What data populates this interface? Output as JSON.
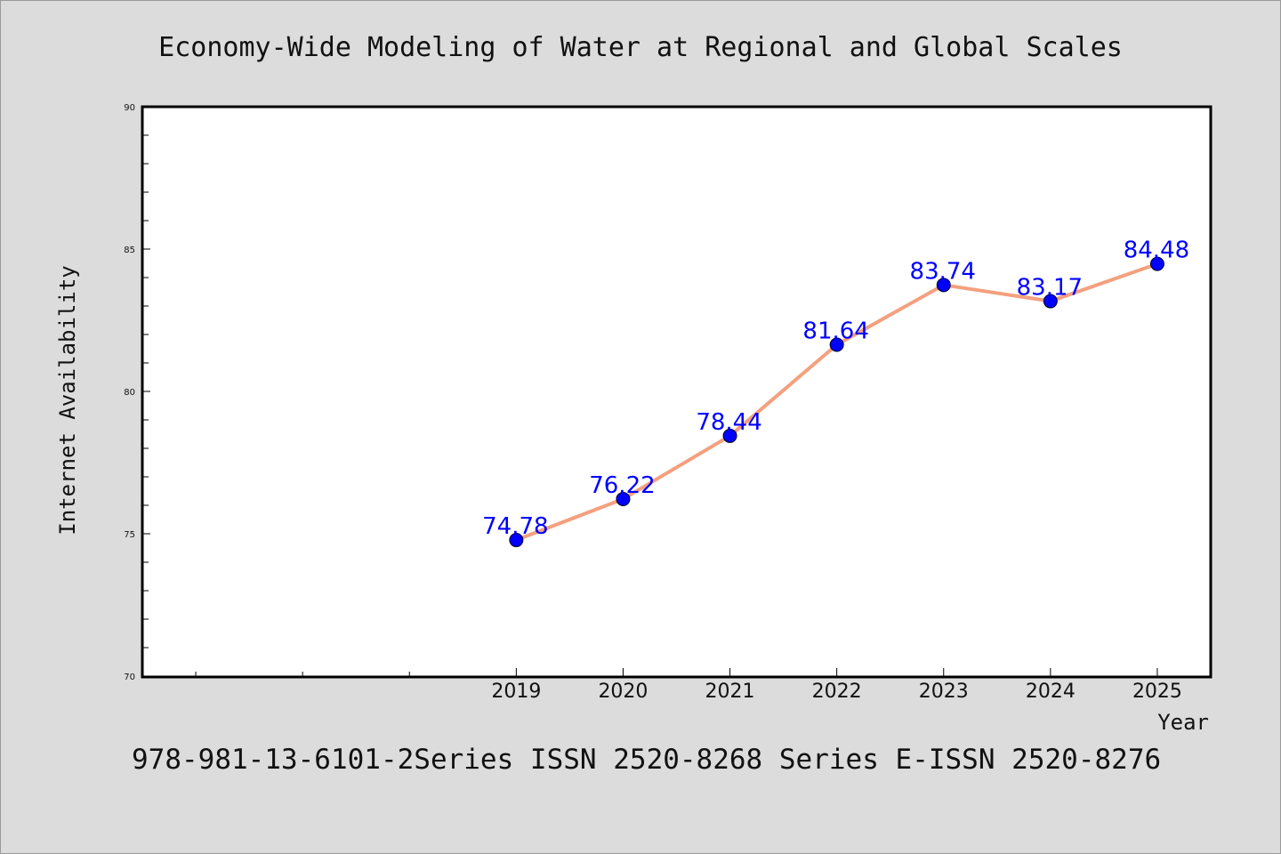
{
  "page": {
    "title": "Economy-Wide Modeling of Water at Regional and Global Scales",
    "footer": "978-981-13-6101-2Series ISSN 2520-8268 Series E-ISSN 2520-8276"
  },
  "colors": {
    "line": "#f4a07e",
    "marker": "#0000ff",
    "label": "#0000ff",
    "plot_bg": "#ffffff",
    "page_bg": "#dcdcdc"
  },
  "chart_data": {
    "type": "line",
    "title": "Economy-Wide Modeling of Water at Regional and Global Scales",
    "xlabel": "Year",
    "ylabel": "Internet Availability",
    "x": [
      "2019",
      "2020",
      "2021",
      "2022",
      "2023",
      "2024",
      "2025"
    ],
    "x_axis_range": [
      2015.5,
      2025.5
    ],
    "ylim": [
      70,
      90
    ],
    "yticks": [
      70,
      75,
      80,
      85,
      90
    ],
    "grid": false,
    "series": [
      {
        "values": [
          74.78,
          76.22,
          78.44,
          81.64,
          83.74,
          83.17,
          84.48
        ],
        "labels": [
          "74.78",
          "76.22",
          "78.44",
          "81.64",
          "83.74",
          "83.17",
          "84.48"
        ]
      }
    ]
  }
}
